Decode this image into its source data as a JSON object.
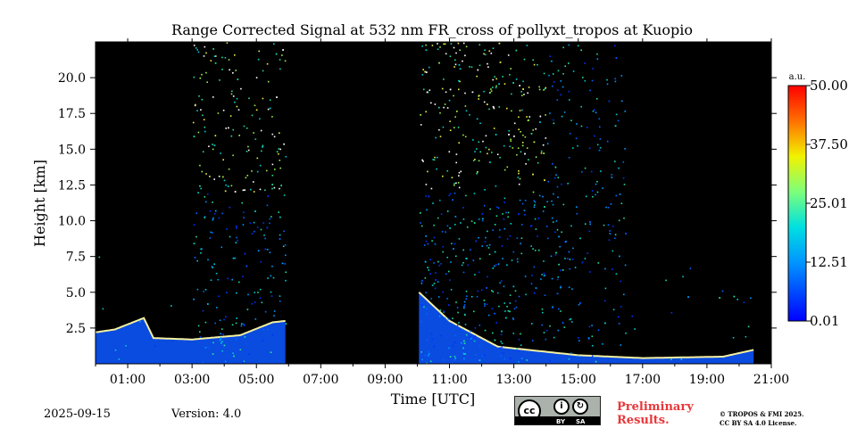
{
  "chart_data": {
    "type": "heatmap",
    "title": "Range Corrected Signal at 532 nm FR_cross of pollyxt_tropos at Kuopio",
    "xlabel": "Time [UTC]",
    "ylabel": "Height [km]",
    "x_ticks": [
      "01:00",
      "03:00",
      "05:00",
      "07:00",
      "09:00",
      "11:00",
      "13:00",
      "15:00",
      "17:00",
      "19:00",
      "21:00"
    ],
    "y_ticks": [
      "2.5",
      "5.0",
      "7.5",
      "10.0",
      "12.5",
      "15.0",
      "17.5",
      "20.0"
    ],
    "xlim_hours": [
      0,
      21
    ],
    "ylim_km": [
      0,
      22.5
    ],
    "colorbar": {
      "unit": "a.u.",
      "ticks": [
        "50.00",
        "37.50",
        "25.01",
        "12.51",
        "0.01"
      ],
      "range": [
        0.01,
        50.0
      ],
      "colormap": "jet"
    },
    "data_gaps_hours": [
      [
        5.9,
        10.05
      ],
      [
        20.5,
        21
      ]
    ],
    "boundary_layer_top_km": [
      {
        "t": 0.0,
        "h": 2.2
      },
      {
        "t": 0.6,
        "h": 2.4
      },
      {
        "t": 1.5,
        "h": 3.2
      },
      {
        "t": 1.8,
        "h": 1.8
      },
      {
        "t": 3.0,
        "h": 1.7
      },
      {
        "t": 4.5,
        "h": 2.0
      },
      {
        "t": 5.5,
        "h": 2.9
      },
      {
        "t": 5.9,
        "h": 3.0
      },
      {
        "t": 10.05,
        "h": 5.0
      },
      {
        "t": 11.0,
        "h": 3.0
      },
      {
        "t": 12.5,
        "h": 1.2
      },
      {
        "t": 15.0,
        "h": 0.6
      },
      {
        "t": 17.0,
        "h": 0.4
      },
      {
        "t": 19.5,
        "h": 0.5
      },
      {
        "t": 20.5,
        "h": 1.0
      }
    ]
  },
  "footer": {
    "date": "2025-09-15",
    "version": "Version: 4.0",
    "preliminary_line1": "Preliminary",
    "preliminary_line2": "Results.",
    "license_line1": "© TROPOS & FMI 2025.",
    "license_line2": "CC BY SA 4.0 License.",
    "cc_badge": {
      "by": "BY",
      "sa": "SA"
    }
  },
  "colors": {
    "background": "#000000",
    "boundary_layer": "#0a4be0",
    "prelim_text": "#e8373a"
  }
}
